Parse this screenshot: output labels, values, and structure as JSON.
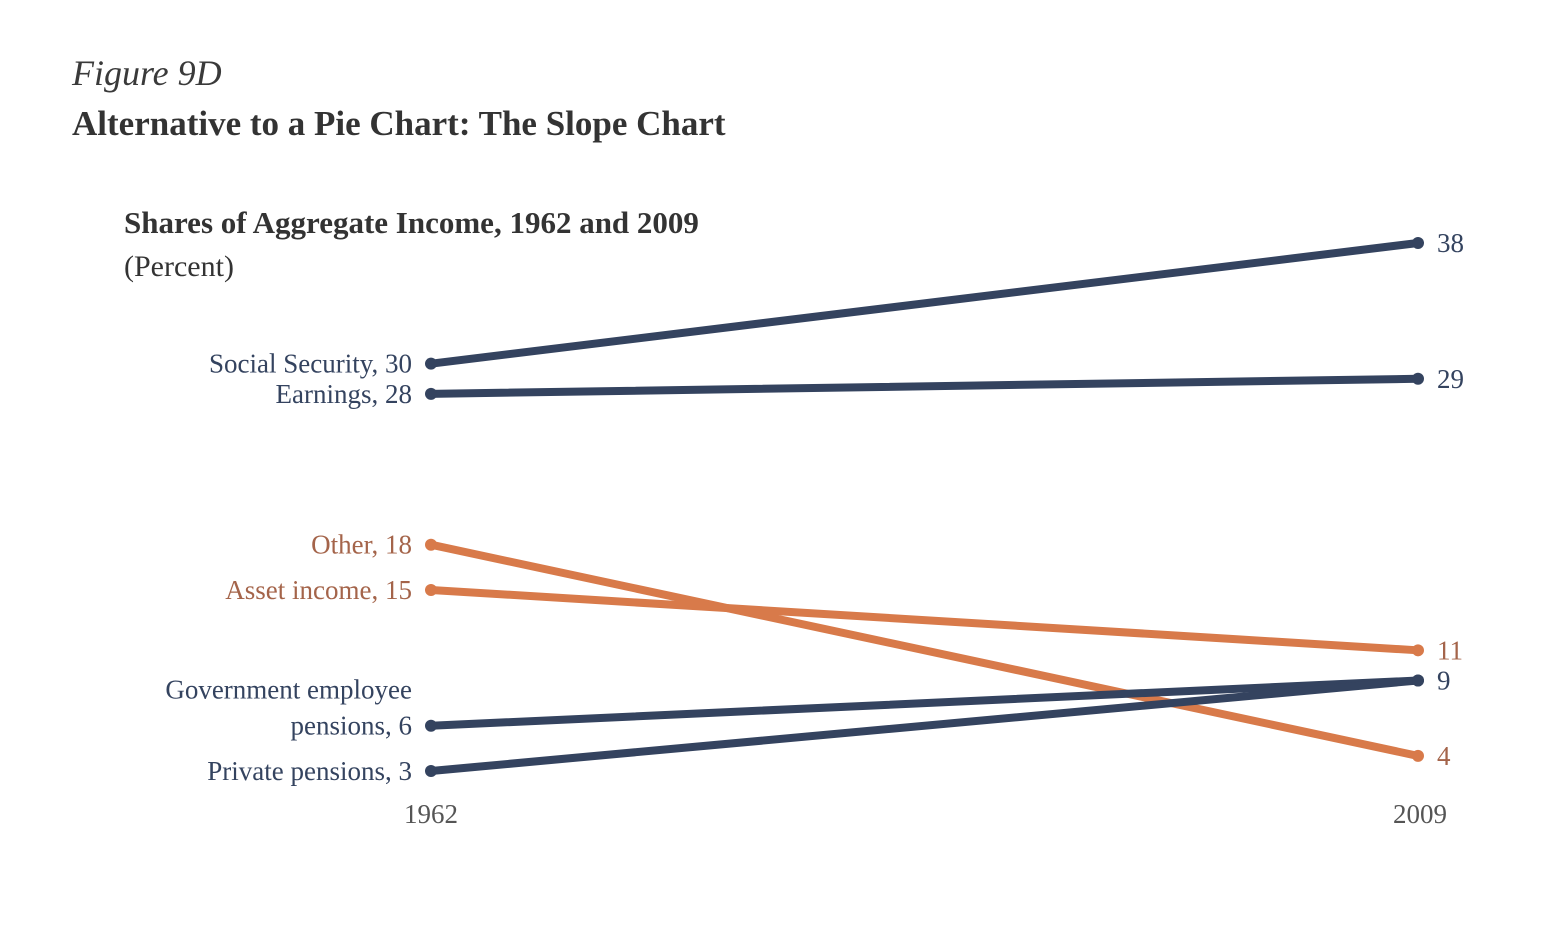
{
  "figure_label": "Figure 9D",
  "figure_title": "Alternative to a Pie Chart: The Slope Chart",
  "chart_data": {
    "type": "line",
    "subtype": "slope",
    "title": "Shares of Aggregate Income, 1962 and 2009",
    "subtitle": "(Percent)",
    "x": [
      "1962",
      "2009"
    ],
    "colors": {
      "dark": "#34435f",
      "orange": "#d87a4a",
      "orange_text": "#a4644a",
      "axis_text": "#555555"
    },
    "series": [
      {
        "name": "Social Security",
        "left_label": "Social Security, 30",
        "values": [
          30,
          38
        ],
        "color_key": "dark"
      },
      {
        "name": "Earnings",
        "left_label": "Earnings, 28",
        "values": [
          28,
          29
        ],
        "color_key": "dark"
      },
      {
        "name": "Other",
        "left_label": "Other, 18",
        "values": [
          18,
          4
        ],
        "color_key": "orange"
      },
      {
        "name": "Asset income",
        "left_label": "Asset income, 15",
        "values": [
          15,
          11
        ],
        "color_key": "orange"
      },
      {
        "name": "Government employee pensions",
        "left_label": [
          "Government employee",
          "pensions, 6"
        ],
        "values": [
          6,
          9
        ],
        "color_key": "dark"
      },
      {
        "name": "Private pensions",
        "left_label": "Private pensions, 3",
        "values": [
          3,
          9
        ],
        "color_key": "dark"
      }
    ],
    "right_labels": [
      {
        "text": "38",
        "value": 38,
        "color_key": "dark"
      },
      {
        "text": "29",
        "value": 29,
        "color_key": "dark"
      },
      {
        "text": "11",
        "value": 11,
        "color_key": "orange"
      },
      {
        "text": "9",
        "value": 9,
        "color_key": "dark"
      },
      {
        "text": "4",
        "value": 4,
        "color_key": "orange"
      }
    ],
    "ylim": [
      3,
      38
    ]
  }
}
